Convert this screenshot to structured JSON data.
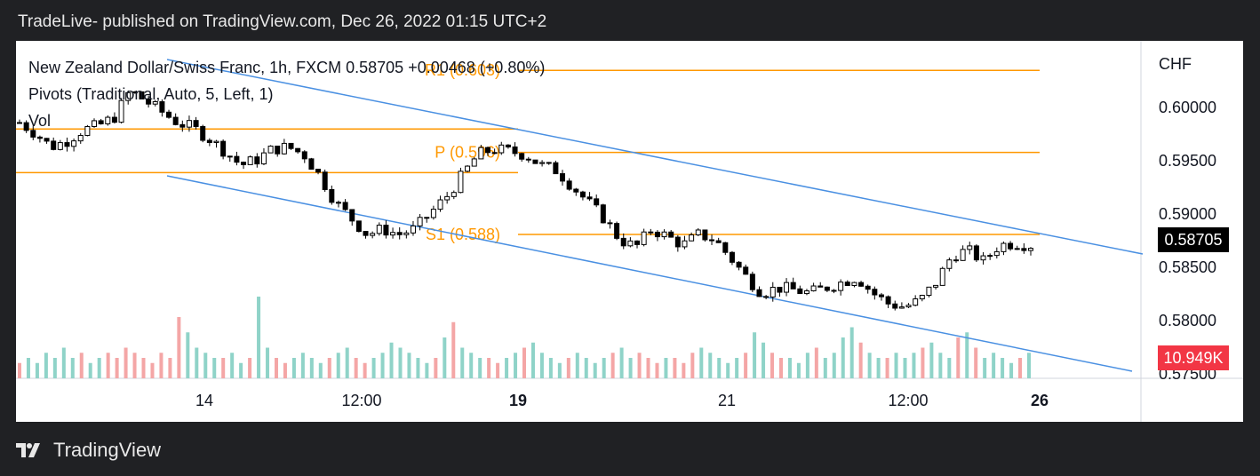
{
  "header": "TradeLive- published on TradingView.com, Dec 26, 2022 01:15 UTC+2",
  "legend": {
    "symbol_line": "New Zealand Dollar/Swiss Franc, 1h, FXCM",
    "price": "0.58705",
    "change": "+0.00468 (+0.80%)",
    "pivots": "Pivots (Traditional, Auto, 5, Left, 1)",
    "vol": "Vol"
  },
  "axis_unit": "CHF",
  "last_price_label": "0.58705",
  "volume_label": "10.949K",
  "footer_brand": "TradingView",
  "colors": {
    "up": "#ffffff",
    "down": "#000000",
    "pivot": "#ff9800",
    "channel": "#4a90e2",
    "vol_up": "#8fd3c8",
    "vol_down": "#f4a6a6",
    "price_tag": "#000000",
    "vol_tag": "#f23645"
  },
  "chart_data": {
    "type": "candlestick",
    "y_axis": {
      "ticks": [
        0.6,
        0.595,
        0.59,
        0.585,
        0.58,
        0.575
      ],
      "tick_labels": [
        "0.60000",
        "0.59500",
        "0.59000",
        "0.58500",
        "0.58000",
        "0.57500"
      ]
    },
    "x_axis": {
      "ticks": [
        {
          "label": "14",
          "bold": false
        },
        {
          "label": "12:00",
          "bold": false
        },
        {
          "label": "19",
          "bold": true
        },
        {
          "label": "21",
          "bold": false
        },
        {
          "label": "12:00",
          "bold": false
        },
        {
          "label": "26",
          "bold": true
        }
      ]
    },
    "pivots": [
      {
        "label": "R1 (0.603)",
        "value": 0.6034
      },
      {
        "label": "",
        "value": 0.5979
      },
      {
        "label": "",
        "value": 0.5938
      },
      {
        "label": "P (0.596)",
        "value": 0.5957
      },
      {
        "label": "S1 (0.588)",
        "value": 0.588
      }
    ],
    "price_path": [
      0.5985,
      0.5975,
      0.5962,
      0.5968,
      0.5978,
      0.5982,
      0.599,
      0.6015,
      0.6005,
      0.5995,
      0.5985,
      0.598,
      0.597,
      0.5958,
      0.5945,
      0.595,
      0.596,
      0.5962,
      0.5955,
      0.5935,
      0.591,
      0.5895,
      0.588,
      0.5885,
      0.588,
      0.5885,
      0.59,
      0.5915,
      0.5935,
      0.5955,
      0.596,
      0.5958,
      0.5955,
      0.5945,
      0.594,
      0.5925,
      0.591,
      0.5895,
      0.5875,
      0.5868,
      0.5885,
      0.5878,
      0.587,
      0.588,
      0.5875,
      0.5858,
      0.584,
      0.5825,
      0.583,
      0.5828,
      0.5825,
      0.583,
      0.5835,
      0.584,
      0.5825,
      0.5815,
      0.5812,
      0.5818,
      0.5835,
      0.586,
      0.5865,
      0.5855,
      0.587,
      0.5872,
      0.587
    ],
    "volume": [
      3,
      4,
      3,
      5,
      4,
      6,
      4,
      5,
      3,
      4,
      5,
      4,
      6,
      5,
      4,
      3,
      5,
      4,
      12,
      9,
      6,
      5,
      4,
      4,
      5,
      3,
      4,
      16,
      6,
      4,
      3,
      4,
      5,
      4,
      3,
      4,
      5,
      6,
      4,
      3,
      4,
      5,
      7,
      6,
      5,
      4,
      3,
      4,
      8,
      11,
      6,
      5,
      4,
      4,
      3,
      4,
      5,
      6,
      7,
      5,
      4,
      3,
      4,
      5,
      4,
      3,
      4,
      5,
      6,
      4,
      5,
      4,
      3,
      4,
      4,
      3,
      5,
      6,
      5,
      4,
      3,
      4,
      5,
      9,
      7,
      5,
      4,
      4,
      3,
      5,
      6,
      4,
      5,
      8,
      10,
      7,
      5,
      4,
      4,
      5,
      4,
      5,
      6,
      7,
      5,
      4,
      8,
      9,
      6,
      4,
      5,
      4,
      3,
      4,
      5
    ]
  }
}
